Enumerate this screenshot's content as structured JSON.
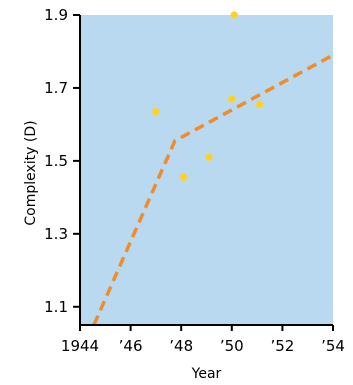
{
  "chart_data": {
    "type": "scatter",
    "xlabel": "Year",
    "ylabel": "Complexity (D)",
    "xlim": [
      1944,
      1954
    ],
    "ylim": [
      1.05,
      1.9
    ],
    "x_ticks": [
      {
        "value": 1944,
        "label": "1944"
      },
      {
        "value": 1946,
        "label": "’46"
      },
      {
        "value": 1948,
        "label": "’48"
      },
      {
        "value": 1950,
        "label": "’50"
      },
      {
        "value": 1952,
        "label": "’52"
      },
      {
        "value": 1954,
        "label": "’54"
      }
    ],
    "y_ticks": [
      {
        "value": 1.1,
        "label": "1.1"
      },
      {
        "value": 1.3,
        "label": "1.3"
      },
      {
        "value": 1.5,
        "label": "1.5"
      },
      {
        "value": 1.7,
        "label": "1.7"
      },
      {
        "value": 1.9,
        "label": "1.9"
      }
    ],
    "points": [
      {
        "x": 1947.0,
        "y": 1.635
      },
      {
        "x": 1948.1,
        "y": 1.455
      },
      {
        "x": 1949.1,
        "y": 1.51
      },
      {
        "x": 1950.1,
        "y": 1.9
      },
      {
        "x": 1950.0,
        "y": 1.67
      },
      {
        "x": 1951.1,
        "y": 1.655
      }
    ],
    "trend": [
      {
        "x": 1944.55,
        "y": 1.05
      },
      {
        "x": 1947.75,
        "y": 1.555
      },
      {
        "x": 1954.0,
        "y": 1.79
      }
    ],
    "colors": {
      "background": "#b8d9f0",
      "point": "#ffd21f",
      "trend": "#f08c2c",
      "axis": "#000000"
    },
    "grid": false
  }
}
